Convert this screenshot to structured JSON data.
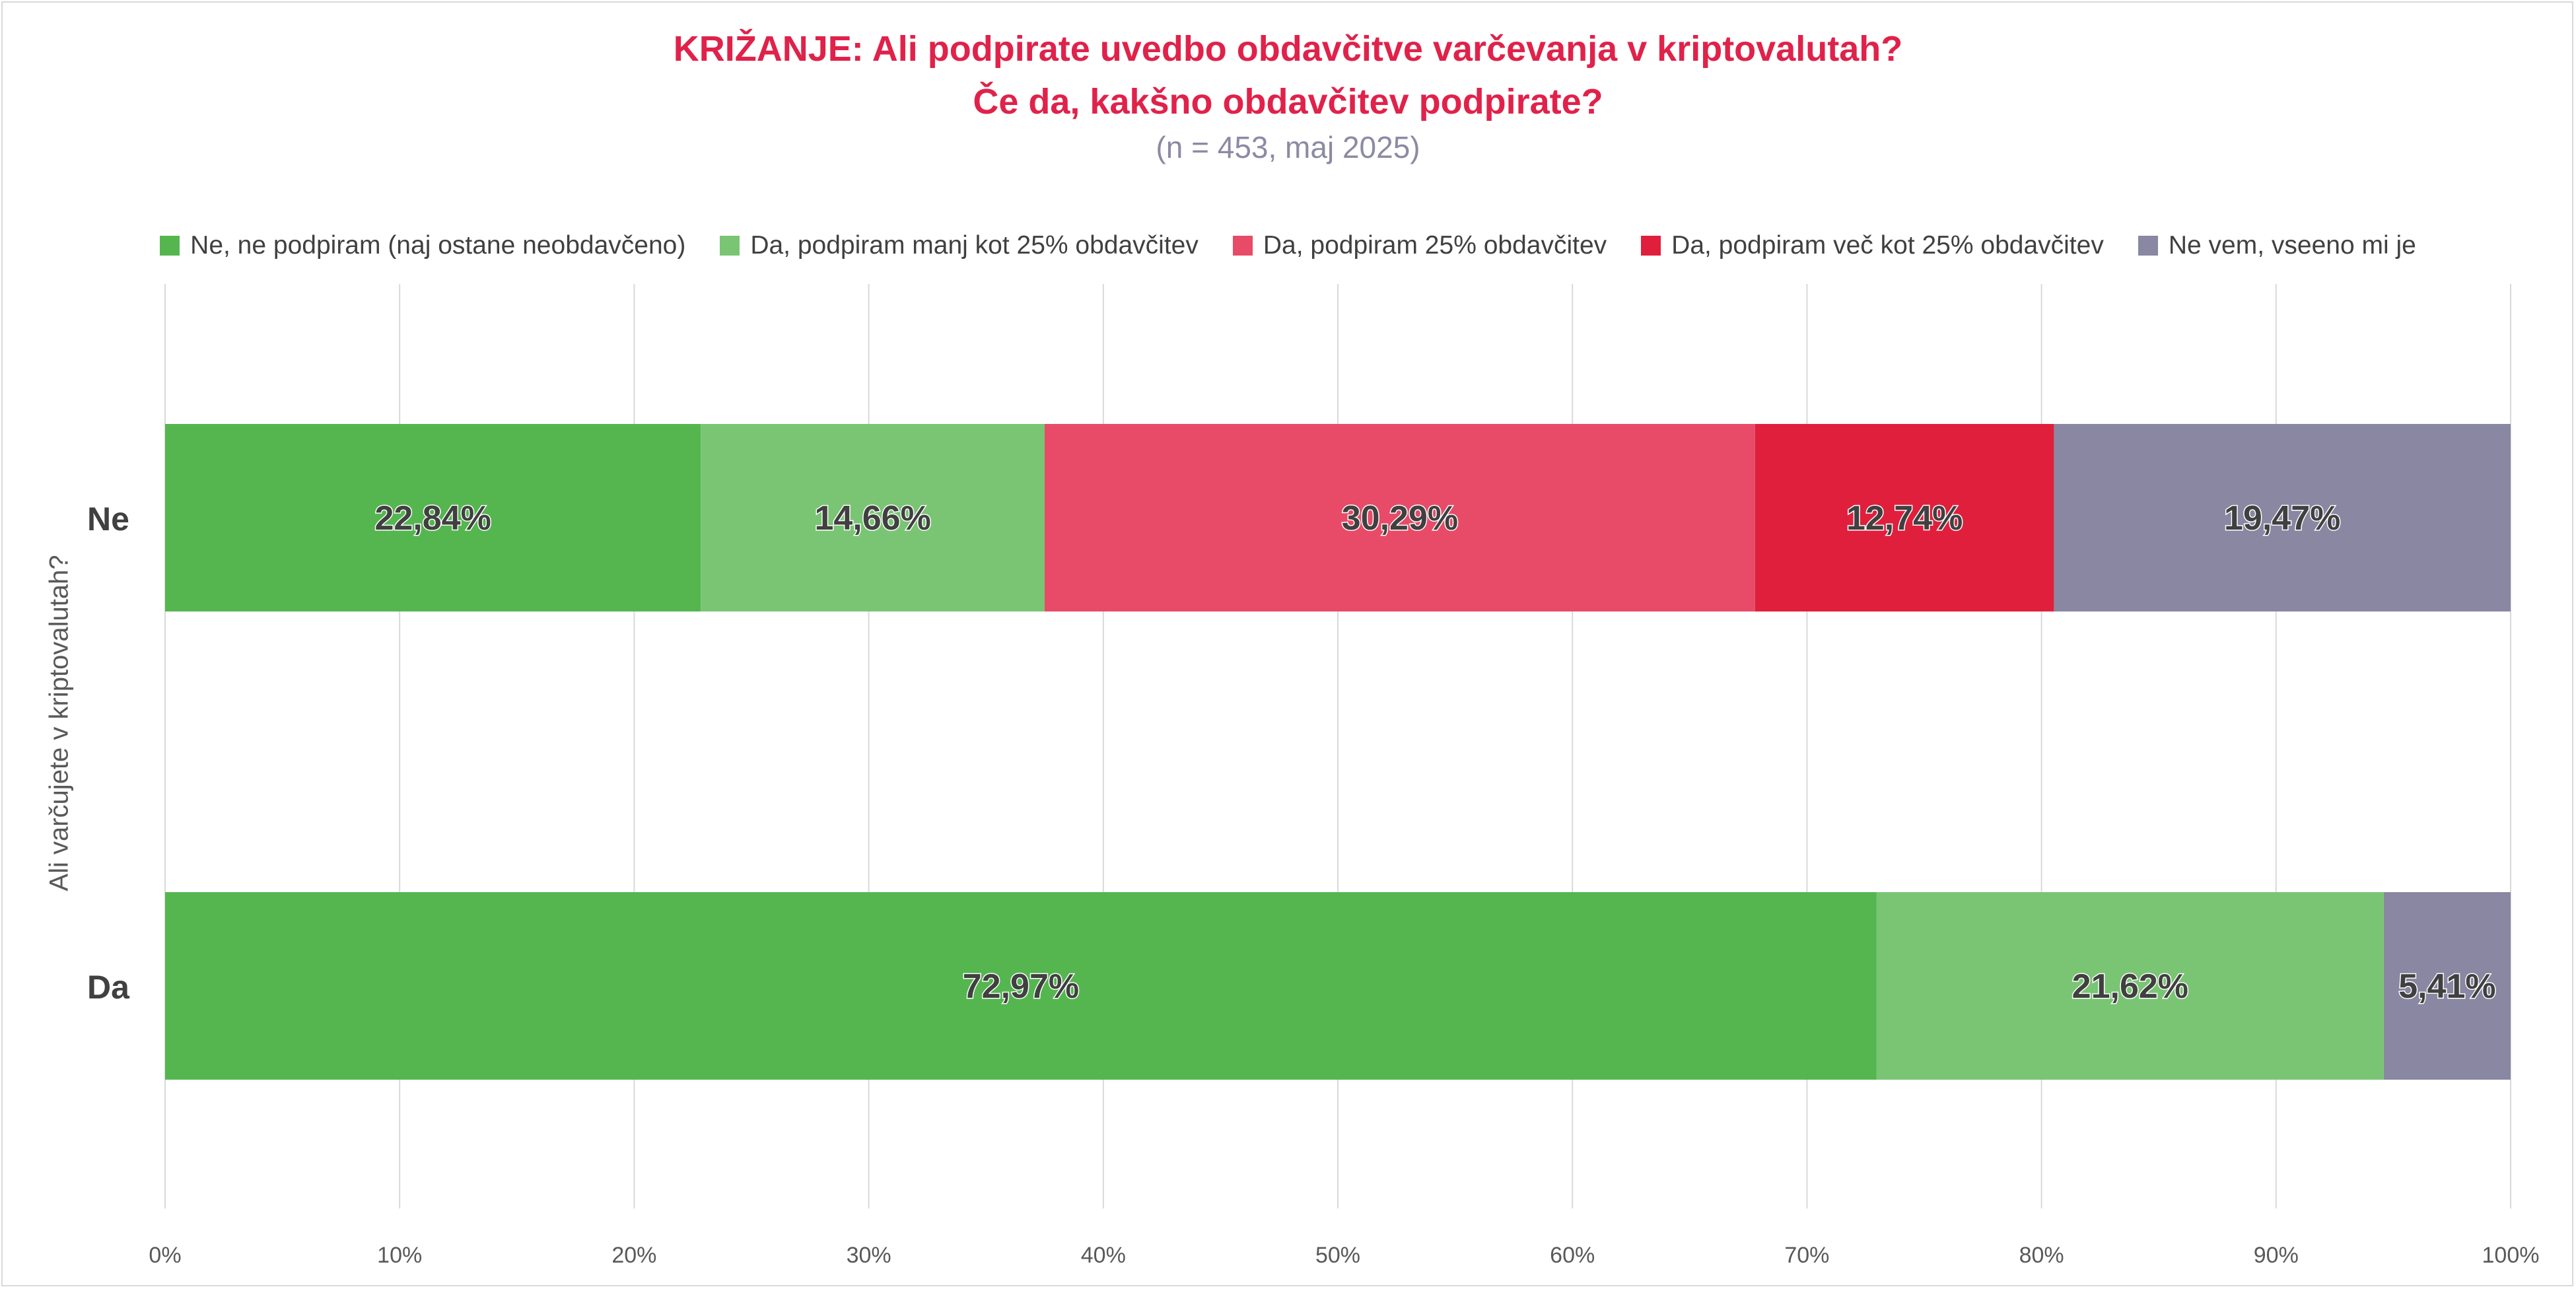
{
  "chart_data": {
    "type": "bar",
    "orientation": "horizontal",
    "stacked": "100%",
    "title": "KRIŽANJE: Ali podpirate uvedbo obdavčitve varčevanja v kriptovalutah?",
    "title_line2": "Če da, kakšno obdavčitev podpirate?",
    "subtitle": "(n = 453, maj 2025)",
    "ylabel": "Ali varčujete v kriptovalutah?",
    "xlabel": "",
    "xlim": [
      0,
      100
    ],
    "x_ticks": [
      "0%",
      "10%",
      "20%",
      "30%",
      "40%",
      "50%",
      "60%",
      "70%",
      "80%",
      "90%",
      "100%"
    ],
    "grid": "vertical",
    "legend_position": "top",
    "categories": [
      "Ne",
      "Da"
    ],
    "series": [
      {
        "name": "Ne, ne podpiram (naj ostane neobdavčeno)",
        "color": "#55b650",
        "values": [
          22.84,
          72.97
        ],
        "labels": [
          "22,84%",
          "72,97%"
        ]
      },
      {
        "name": "Da, podpiram manj kot 25% obdavčitev",
        "color": "#7ac574",
        "values": [
          14.66,
          21.62
        ],
        "labels": [
          "14,66%",
          "21,62%"
        ]
      },
      {
        "name": "Da, podpiram 25% obdavčitev",
        "color": "#e84b68",
        "values": [
          30.29,
          0
        ],
        "labels": [
          "30,29%",
          ""
        ]
      },
      {
        "name": "Da, podpiram več kot 25% obdavčitev",
        "color": "#e01f3d",
        "values": [
          12.74,
          0
        ],
        "labels": [
          "12,74%",
          ""
        ]
      },
      {
        "name": "Ne vem, vseeno mi je",
        "color": "#8987a2",
        "values": [
          19.47,
          5.41
        ],
        "labels": [
          "19,47%",
          "5,41%"
        ]
      }
    ]
  }
}
